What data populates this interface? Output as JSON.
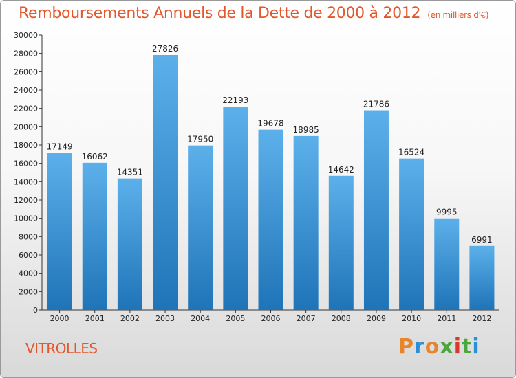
{
  "page": {
    "title": "Remboursements Annuels de la Dette de 2000 à 2012",
    "subtitle": "(en milliers d'€)",
    "city": "VITROLLES",
    "logo": "Proxiti"
  },
  "colors": {
    "title": "#e2572b",
    "bar_top": "#5cb0ea",
    "bar_bottom": "#1f74b8",
    "logo_letters": [
      "#e8842a",
      "#2a8fd6",
      "#e8842a",
      "#4aa83a",
      "#d63a2a",
      "#4aa83a",
      "#2a8fd6"
    ]
  },
  "chart_data": {
    "type": "bar",
    "title": "Remboursements Annuels de la Dette de 2000 à 2012",
    "subtitle": "(en milliers d'€)",
    "categories": [
      "2000",
      "2001",
      "2002",
      "2003",
      "2004",
      "2005",
      "2006",
      "2007",
      "2008",
      "2009",
      "2010",
      "2011",
      "2012"
    ],
    "values": [
      17149,
      16062,
      14351,
      27826,
      17950,
      22193,
      19678,
      18985,
      14642,
      21786,
      16524,
      9995,
      6991
    ],
    "ylim": [
      0,
      30000
    ],
    "yticks": [
      0,
      2000,
      4000,
      6000,
      8000,
      10000,
      12000,
      14000,
      16000,
      18000,
      20000,
      22000,
      24000,
      26000,
      28000,
      30000
    ],
    "grid": false,
    "data_labels": true
  }
}
